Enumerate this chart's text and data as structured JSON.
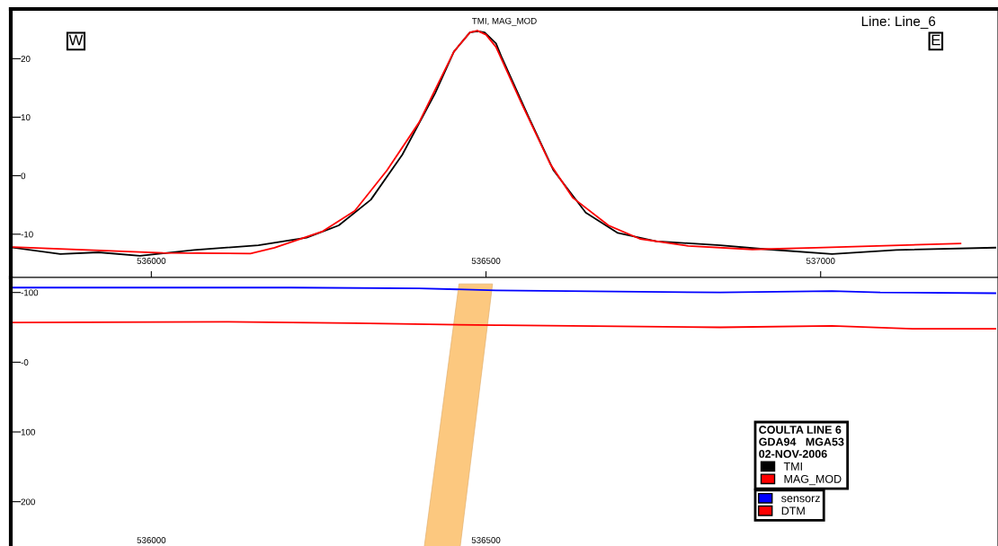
{
  "chart_data": [
    {
      "type": "line",
      "title": "TMI, MAG_MOD",
      "legend": "bottom right",
      "legend_title": "COULTA LINE 6\nGDA94   MGA53\n02-NOV-2006",
      "annotations": [
        "W",
        "E",
        "Line: Line_6"
      ],
      "xlim": [
        535790,
        537265
      ],
      "xticks": [
        536000,
        536500,
        537000
      ],
      "ylim": [
        -17.4,
        28.5
      ],
      "yticks": [
        -10,
        0,
        10,
        20
      ],
      "grid": false,
      "line_style": "solid",
      "marker": "none",
      "series": [
        {
          "name": "TMI",
          "color": "#000000",
          "x": [
            535794,
            535864,
            535921,
            535983,
            536064,
            536160,
            536232,
            536280,
            536328,
            536375,
            536424,
            536452,
            536476,
            536487,
            536498,
            536515,
            536524,
            536563,
            536601,
            536649,
            536697,
            536754,
            536850,
            536922,
            537017,
            537113,
            537261
          ],
          "values": [
            -12.3,
            -13.4,
            -13.1,
            -13.7,
            -12.7,
            -11.9,
            -10.6,
            -8.5,
            -4.1,
            3.6,
            14.1,
            21.2,
            24.5,
            24.7,
            24.5,
            22.6,
            20.1,
            10.2,
            0.9,
            -6.3,
            -9.8,
            -11.2,
            -11.9,
            -12.6,
            -13.4,
            -12.7,
            -12.3
          ]
        },
        {
          "name": "MAG_MOD",
          "color": "#ff0000",
          "x": [
            535794,
            536017,
            536148,
            536184,
            536256,
            536304,
            536352,
            536400,
            536452,
            536476,
            536487,
            536500,
            536515,
            536553,
            536596,
            536630,
            536683,
            536730,
            536802,
            536898,
            536993,
            537209
          ],
          "values": [
            -12.2,
            -13.2,
            -13.3,
            -12.3,
            -9.5,
            -6.0,
            0.9,
            9.1,
            21.2,
            24.5,
            24.8,
            24.1,
            22.0,
            12.4,
            2.0,
            -3.8,
            -8.5,
            -10.8,
            -12.0,
            -12.6,
            -12.3,
            -11.6
          ]
        }
      ]
    },
    {
      "type": "line",
      "legend": "bottom right",
      "xlim": [
        535790,
        537265
      ],
      "xticks": [
        536000,
        536500
      ],
      "ylim": [
        279,
        -121.5
      ],
      "yticks": [
        -100,
        {
          "value": 0,
          "label": "-0"
        },
        100,
        200
      ],
      "grid": false,
      "line_style": "solid",
      "marker": "none",
      "series": [
        {
          "name": "sensorz",
          "color": "#0000ff",
          "x": [
            535794,
            536113,
            536208,
            536400,
            536515,
            536850,
            537017,
            537089,
            537261
          ],
          "values": [
            -107,
            -107,
            -107,
            -106,
            -103,
            -100,
            -102,
            -100,
            -99
          ]
        },
        {
          "name": "DTM",
          "color": "#ff0000",
          "x": [
            535794,
            536113,
            536304,
            536515,
            536524,
            536850,
            537017,
            537137,
            537261
          ],
          "values": [
            -57,
            -58,
            -56,
            -53,
            -53,
            -50,
            -52,
            -48,
            -48
          ]
        }
      ]
    }
  ]
}
